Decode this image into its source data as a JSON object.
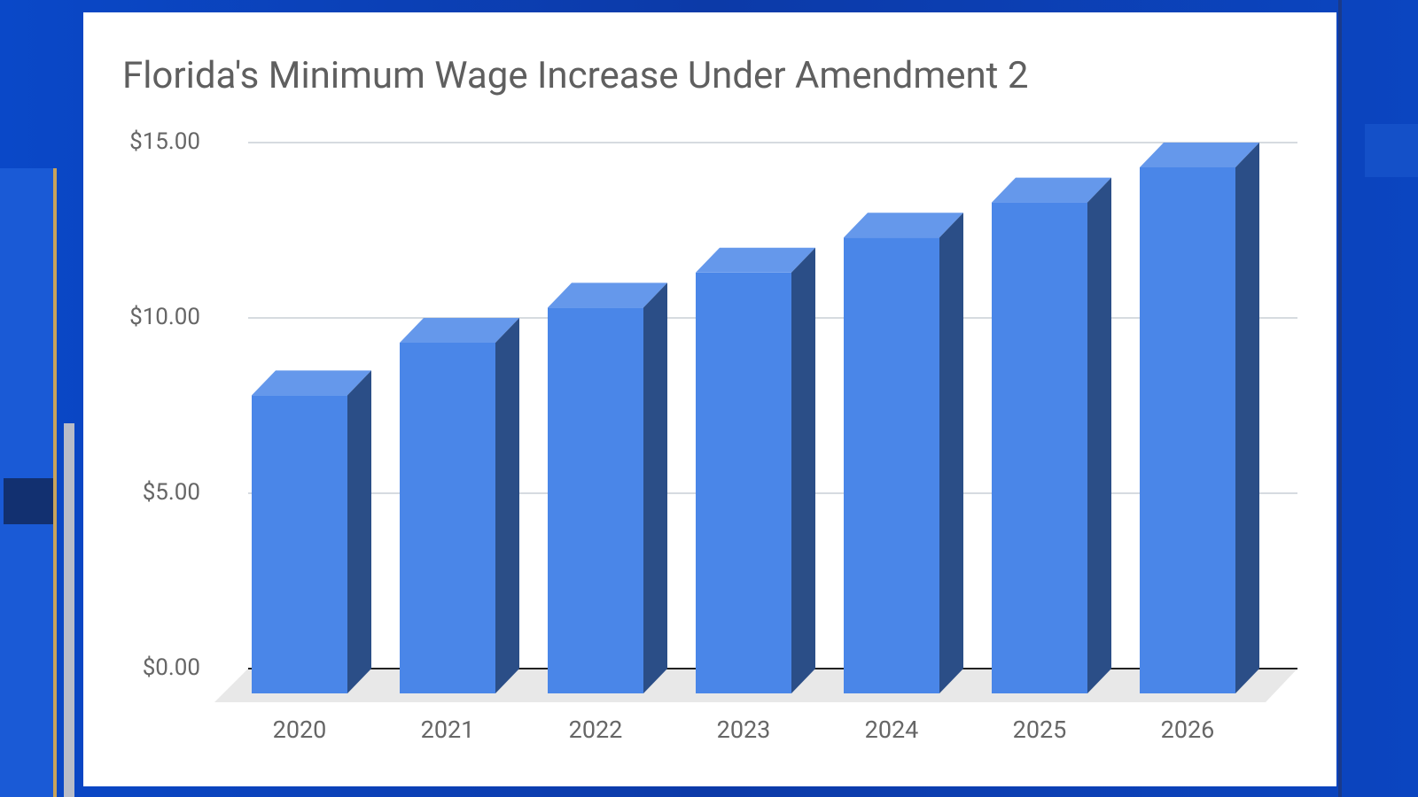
{
  "chart_data": {
    "type": "bar3d",
    "title": "Florida's Minimum Wage Increase Under Amendment 2",
    "categories": [
      "2020",
      "2021",
      "2022",
      "2023",
      "2024",
      "2025",
      "2026"
    ],
    "values": [
      8.5,
      10,
      11,
      12,
      13,
      14,
      15
    ],
    "color": "#4a86e8",
    "ylim": [
      0,
      15
    ],
    "yticks": [
      {
        "value": 0,
        "label": "$0.00"
      },
      {
        "value": 5,
        "label": "$5.00"
      },
      {
        "value": 10,
        "label": "$10.00"
      },
      {
        "value": 15,
        "label": "$15.00"
      }
    ],
    "grid": true
  }
}
